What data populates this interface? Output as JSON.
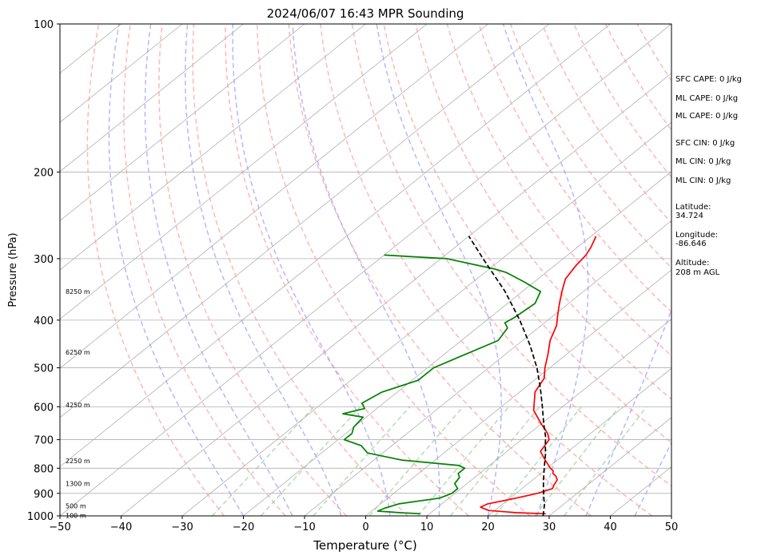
{
  "chart_data": {
    "type": "line",
    "title": "2024/06/07 16:43 MPR Sounding",
    "xlabel": "Temperature (°C)",
    "ylabel": "Pressure (hPa)",
    "xlim": [
      -50,
      50
    ],
    "ylim": [
      1000,
      100
    ],
    "y_scale": "log",
    "skew": "skew-T",
    "x_ticks": [
      "−50",
      "−40",
      "−30",
      "−20",
      "−10",
      "0",
      "10",
      "20",
      "30",
      "40",
      "50"
    ],
    "y_ticks": [
      "100",
      "200",
      "300",
      "400",
      "500",
      "600",
      "700",
      "800",
      "900",
      "1000"
    ],
    "height_labels": [
      {
        "p": 998,
        "label": "100 m"
      },
      {
        "p": 955,
        "label": "500 m"
      },
      {
        "p": 860,
        "label": "1300 m"
      },
      {
        "p": 772,
        "label": "2250 m"
      },
      {
        "p": 595,
        "label": "4250 m"
      },
      {
        "p": 465,
        "label": "6250 m"
      },
      {
        "p": 350,
        "label": "8250 m"
      }
    ],
    "series": [
      {
        "kind": "temperature",
        "color": "#ff0000",
        "p": [
          990,
          985,
          975,
          960,
          945,
          920,
          900,
          880,
          865,
          845,
          830,
          820,
          810,
          800,
          770,
          740,
          700,
          680,
          650,
          610,
          560,
          525,
          500,
          470,
          440,
          410,
          390,
          370,
          350,
          330,
          310,
          295,
          284,
          275,
          270
        ],
        "t": [
          29,
          24,
          19,
          17,
          17.5,
          21,
          23.5,
          25,
          24.5,
          24,
          23,
          22,
          21.5,
          20.5,
          18,
          15.5,
          14.5,
          13,
          10,
          6,
          2.5,
          1.2,
          -0.8,
          -3,
          -5.5,
          -7.5,
          -9.5,
          -11.5,
          -13.5,
          -15.5,
          -16.5,
          -17,
          -17.8,
          -18.7,
          -19.2
        ]
      },
      {
        "kind": "dewpoint",
        "color": "#008000",
        "p": [
          990,
          985,
          978,
          965,
          945,
          920,
          900,
          880,
          860,
          835,
          820,
          800,
          790,
          770,
          745,
          720,
          700,
          680,
          660,
          630,
          620,
          605,
          590,
          560,
          530,
          500,
          475,
          440,
          415,
          405,
          395,
          370,
          350,
          335,
          320,
          315,
          300,
          295
        ],
        "t": [
          8.5,
          5,
          1,
          1.5,
          3,
          8.5,
          9.5,
          9.5,
          8,
          7.5,
          6.5,
          6.5,
          5,
          -5.5,
          -12.5,
          -15,
          -19,
          -19,
          -20,
          -20.5,
          -24.5,
          -22,
          -23.5,
          -22.5,
          -19,
          -19,
          -17,
          -14,
          -15,
          -16.5,
          -16,
          -15.5,
          -17,
          -21.5,
          -26.5,
          -29,
          -39,
          -50
        ]
      },
      {
        "kind": "parcel",
        "color": "#000000",
        "dashed": true,
        "p": [
          1000,
          950,
          900,
          850,
          800,
          750,
          720,
          690,
          650,
          600,
          550,
          500,
          450,
          400,
          350,
          300,
          270
        ],
        "t": [
          29,
          27,
          24.5,
          22,
          19.5,
          16.9,
          15.1,
          13.3,
          10.4,
          6.7,
          2.6,
          -2.1,
          -7.8,
          -14.6,
          -22.8,
          -33.1,
          -40
        ]
      }
    ],
    "background_lines": {
      "isobars": [
        100,
        200,
        300,
        400,
        500,
        600,
        700,
        800,
        900,
        1000
      ],
      "isotherm_step": 10,
      "dry_adiabat_color": "#ff9999",
      "moist_adiabat_color": "#9999ff",
      "mixing_ratio_color": "#99cc99",
      "grid_color": "#b0b0b0"
    },
    "side_info": [
      {
        "key": "sfc_cape",
        "text": "SFC CAPE: 0 J/kg"
      },
      {
        "key": "ml_cape_1",
        "text": "ML CAPE: 0 J/kg"
      },
      {
        "key": "ml_cape_2",
        "text": "ML CAPE: 0 J/kg"
      },
      {
        "key": "sfc_cin",
        "text": "SFC CIN: 0 J/kg"
      },
      {
        "key": "ml_cin_1",
        "text": "ML CIN: 0 J/kg"
      },
      {
        "key": "ml_cin_2",
        "text": "ML CIN: 0 J/kg"
      },
      {
        "key": "lat_label",
        "text": "Latitude:"
      },
      {
        "key": "lat_value",
        "text": "34.724"
      },
      {
        "key": "lon_label",
        "text": "Longitude:"
      },
      {
        "key": "lon_value",
        "text": "-86.646"
      },
      {
        "key": "alt_label",
        "text": "Altitude:"
      },
      {
        "key": "alt_value",
        "text": "208 m AGL"
      }
    ]
  }
}
